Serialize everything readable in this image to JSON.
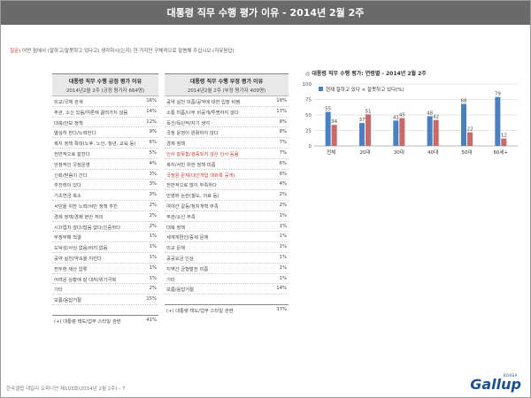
{
  "title": "대통령 직무 수행 평가 이유 - 2014년 2월 2주",
  "question_label": "질문)",
  "question_text": " 어떤 점에서 (잘하고/잘못하고 있다고) 생각하시(는지) 한 가지만 구체적으로 말씀해 주십시오 (자유응답)",
  "positive_table": {
    "header": "대통령 직무 수행 긍정 평가 이유",
    "subheader": "2014년2월 2주 (긍정 평가자 664명)",
    "rows": [
      {
        "label": "외교/국제 관계",
        "value": "16%"
      },
      {
        "label": "주관, 소신 있음/여론에 끌려가지 않음",
        "value": "14%"
      },
      {
        "label": "대북/안보 정책",
        "value": "12%"
      },
      {
        "label": "열심히 한다/노력한다",
        "value": "9%"
      },
      {
        "label": "복지 정책 확대(노후, 노인, 청년, 교육 등)",
        "value": "6%"
      },
      {
        "label": "전반적으로 잘한다",
        "value": "5%"
      },
      {
        "label": "안정적인 국정운영",
        "value": "4%"
      },
      {
        "label": "신뢰/믿음이 간다",
        "value": "3%"
      },
      {
        "label": "추진력이 있다",
        "value": "3%"
      },
      {
        "label": "기초연금 축소",
        "value": "3%"
      },
      {
        "label": "서민을 위한 노력/서민 정책 추진",
        "value": "2%"
      },
      {
        "label": "경제 정책/경제 현안 처리",
        "value": "2%"
      },
      {
        "label": "시끄럽지 않다/잡음 없다/신중하다",
        "value": "2%"
      },
      {
        "label": "부정부패 척결",
        "value": "1%"
      },
      {
        "label": "도덕성/사심 없음/비리 없음",
        "value": "1%"
      },
      {
        "label": "공약 실천/약속을 지킨다",
        "value": "1%"
      },
      {
        "label": "전두환 재산 압류",
        "value": "1%"
      },
      {
        "label": "어려운 상황에 잘 대처/위기극복",
        "value": "1%"
      },
      {
        "label": "기타",
        "value": "2%"
      },
      {
        "label": "모름/응답거절",
        "value": "15%"
      }
    ],
    "footnote": "(+) 대통령 태도/업무 스타일 관련",
    "footnote_value": "41%"
  },
  "negative_table": {
    "header": "대통령 직무 수행 부정 평가 이유",
    "subheader": "2014년2월 2주 (부정 평가자 409명)",
    "rows": [
      {
        "label": "공약 실천 미흡/공약에 대한 입장 바뀜",
        "value": "18%",
        "red": false
      },
      {
        "label": "소통 미흡/너무 비공개/투명하지 않다",
        "value": "17%",
        "red": false
      },
      {
        "label": "독선/독단적/자기 생각",
        "value": "8%",
        "red": false
      },
      {
        "label": "국정 운영이 원활하지 않다",
        "value": "8%",
        "red": false
      },
      {
        "label": "경제 정책",
        "value": "7%",
        "red": false
      },
      {
        "label": "인사 잘못함/검증되지 않은 인사 등용",
        "value": "7%",
        "red": true
      },
      {
        "label": "복지/서민 위한 정책 미흡",
        "value": "6%",
        "red": false
      },
      {
        "label": "국정원 문제(대선개입 대화록 공개)",
        "value": "6%",
        "red": true
      },
      {
        "label": "전반적으로 많이 부족하다",
        "value": "4%",
        "red": false
      },
      {
        "label": "민영화 논란(철도, 의료 등)",
        "value": "2%",
        "red": false
      },
      {
        "label": "여야간 갈등/정치개혁 부족",
        "value": "2%",
        "red": false
      },
      {
        "label": "주관/소신 부족",
        "value": "1%",
        "red": false
      },
      {
        "label": "대북 정책",
        "value": "1%",
        "red": false
      },
      {
        "label": "세계개편안/증세 문제",
        "value": "1%",
        "red": false
      },
      {
        "label": "외교 문제",
        "value": "1%",
        "red": false
      },
      {
        "label": "공공요금 인상",
        "value": "1%",
        "red": false
      },
      {
        "label": "지역간 균형발전 미흡",
        "value": "1%",
        "red": false
      },
      {
        "label": "기타",
        "value": "1%",
        "red": false
      },
      {
        "label": "모름/응답거절",
        "value": "14%",
        "red": false
      }
    ],
    "footnote": "(+) 대통령 태도/업무 스타일 관련",
    "footnote_value": "37%"
  },
  "chart_title_bullet": "◎",
  "chart_title": "대통령 직무 수행 평가: 연령별 - 2014년 2월 2주",
  "chart_data": {
    "type": "bar",
    "title": "대통령 직무 수행 평가: 연령별 - 2014년 2월 2주",
    "categories": [
      "전체",
      "20대",
      "30대",
      "40대",
      "50대",
      "60세+"
    ],
    "series": [
      {
        "name": "현재 잘하고 있다",
        "values": [
          55,
          37,
          41,
          48,
          68,
          79
        ],
        "color": "#4a7fc1"
      },
      {
        "name": "잘못하고 있다(%)",
        "values": [
          34,
          51,
          45,
          42,
          22,
          12
        ],
        "color": "#c0504d"
      }
    ],
    "legend_separator": " × ",
    "ylim": [
      0,
      100
    ],
    "yticks": [
      0,
      25,
      50,
      75,
      100
    ],
    "grid": true,
    "legend": "top-left"
  },
  "footer": "한국갤럽 데일리 오피니언 제103호(2014년 2월 2주) - 7",
  "logo_text": "Gallup",
  "logo_sub": "KOREA"
}
